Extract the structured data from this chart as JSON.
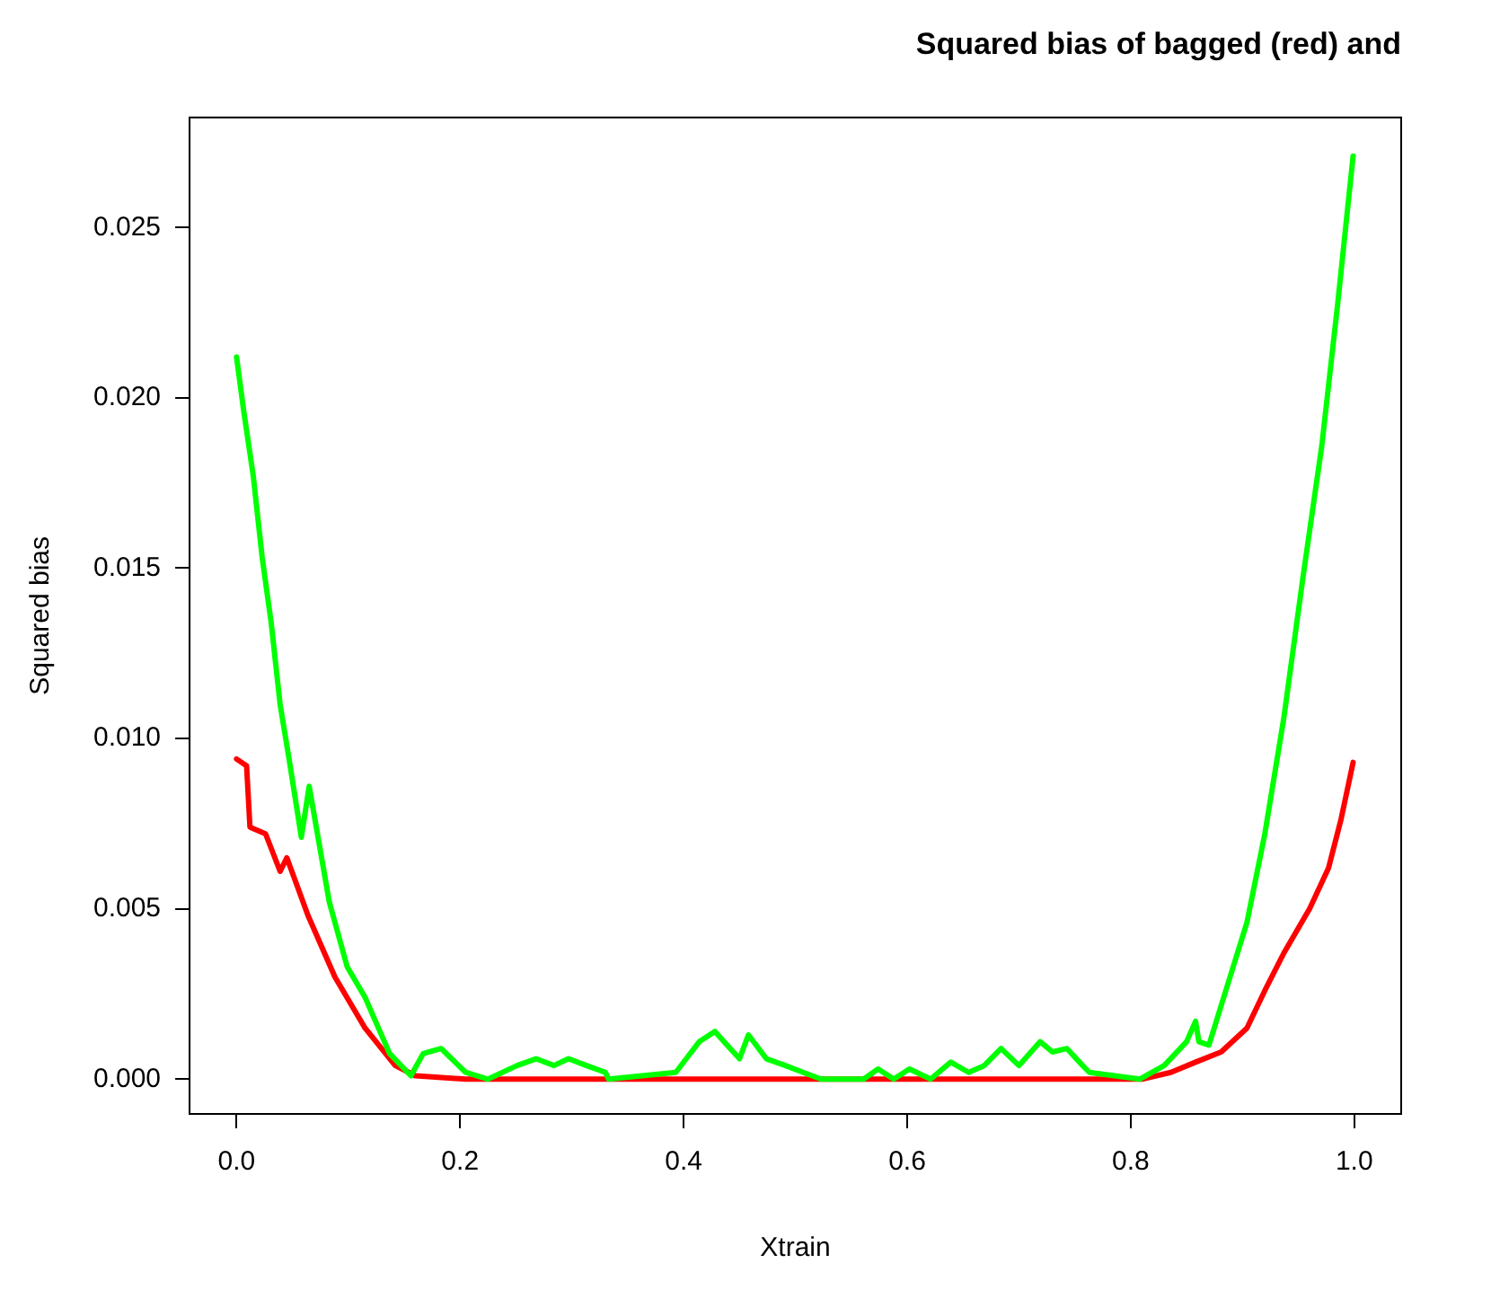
{
  "chart_data": {
    "type": "line",
    "title": "Squared bias of bagged (red) and",
    "xlabel": "Xtrain",
    "ylabel": "Squared bias",
    "xlim": [
      -0.042,
      1.042
    ],
    "xticks": [
      {
        "value": 0,
        "label": "0.0"
      },
      0.2,
      0.4,
      0.6,
      0.8,
      {
        "value": 1,
        "label": "1.0"
      }
    ],
    "ylim": [
      -0.00102,
      0.02823
    ],
    "yticks": [
      {
        "value": 0,
        "label": "0.000"
      },
      {
        "value": 0.005,
        "label": "0.005"
      },
      {
        "value": 0.01,
        "label": "0.010"
      },
      {
        "value": 0.015,
        "label": "0.015"
      },
      {
        "value": 0.02,
        "label": "0.020"
      },
      {
        "value": 0.025,
        "label": "0.025"
      }
    ],
    "grid": false,
    "legend": false,
    "marker": "none",
    "line_style": "solid",
    "series": [
      {
        "color": "#00ff00",
        "x": [
          0,
          0.0065,
          0.015,
          0.023,
          0.031,
          0.039,
          0.047,
          0.058,
          0.065,
          0.083,
          0.099,
          0.115,
          0.137,
          0.156,
          0.167,
          0.183,
          0.205,
          0.225,
          0.251,
          0.268,
          0.284,
          0.297,
          0.313,
          0.33,
          0.333,
          0.393,
          0.414,
          0.428,
          0.439,
          0.45,
          0.458,
          0.474,
          0.491,
          0.507,
          0.523,
          0.561,
          0.574,
          0.588,
          0.602,
          0.621,
          0.639,
          0.655,
          0.669,
          0.684,
          0.7,
          0.719,
          0.73,
          0.743,
          0.757,
          0.763,
          0.808,
          0.83,
          0.85,
          0.858,
          0.861,
          0.87,
          0.887,
          0.904,
          0.92,
          0.937,
          0.954,
          0.971,
          0.985,
          0.999
        ],
        "values": [
          0.0212,
          0.0196,
          0.0177,
          0.0153,
          0.0134,
          0.011,
          0.0094,
          0.0071,
          0.0086,
          0.0052,
          0.0033,
          0.0024,
          0.00075,
          0.0001,
          0.00075,
          0.0009,
          0.0002,
          0,
          0.0004,
          0.0006,
          0.0004,
          0.0006,
          0.0004,
          0.0002,
          0,
          0.0002,
          0.0011,
          0.0014,
          0.001,
          0.0006,
          0.0013,
          0.0006,
          0.0004,
          0.0002,
          0,
          0,
          0.0003,
          0,
          0.0003,
          0,
          0.0005,
          0.0002,
          0.0004,
          0.0009,
          0.0004,
          0.0011,
          0.0008,
          0.0009,
          0.0004,
          0.0002,
          0,
          0.0004,
          0.0011,
          0.0017,
          0.0011,
          0.001,
          0.0028,
          0.0046,
          0.0072,
          0.0106,
          0.0147,
          0.0186,
          0.0227,
          0.0271
        ]
      },
      {
        "color": "#ff0000",
        "x": [
          0,
          0.009,
          0.012,
          0.026,
          0.039,
          0.045,
          0.064,
          0.088,
          0.115,
          0.142,
          0.16,
          0.205,
          0.4,
          0.6,
          0.81,
          0.836,
          0.858,
          0.881,
          0.904,
          0.92,
          0.937,
          0.96,
          0.977,
          0.988,
          0.999
        ],
        "values": [
          0.0094,
          0.0092,
          0.0074,
          0.0072,
          0.0061,
          0.0065,
          0.0048,
          0.003,
          0.0015,
          0.0004,
          0.0001,
          0,
          0,
          0,
          0,
          0.0002,
          0.0005,
          0.0008,
          0.0015,
          0.0026,
          0.0037,
          0.005,
          0.0062,
          0.0076,
          0.0093
        ]
      }
    ]
  }
}
